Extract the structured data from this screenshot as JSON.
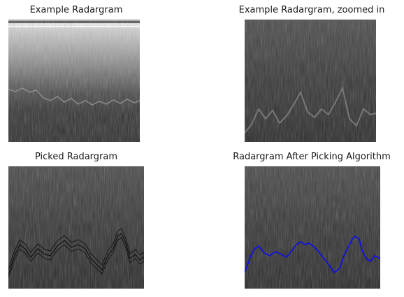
{
  "figure": {
    "panels": [
      {
        "title": "Example Radargram"
      },
      {
        "title": "Example Radargram, zoomed in"
      },
      {
        "title": "Picked Radargram"
      },
      {
        "title": "Radargram After Picking Algorithm"
      }
    ]
  },
  "colors": {
    "background": "#ffffff",
    "radar_dark": "#2e2e2e",
    "radar_light": "#d8d8d8",
    "picked_line": "#111111",
    "algorithm_line": "#1010e0"
  }
}
